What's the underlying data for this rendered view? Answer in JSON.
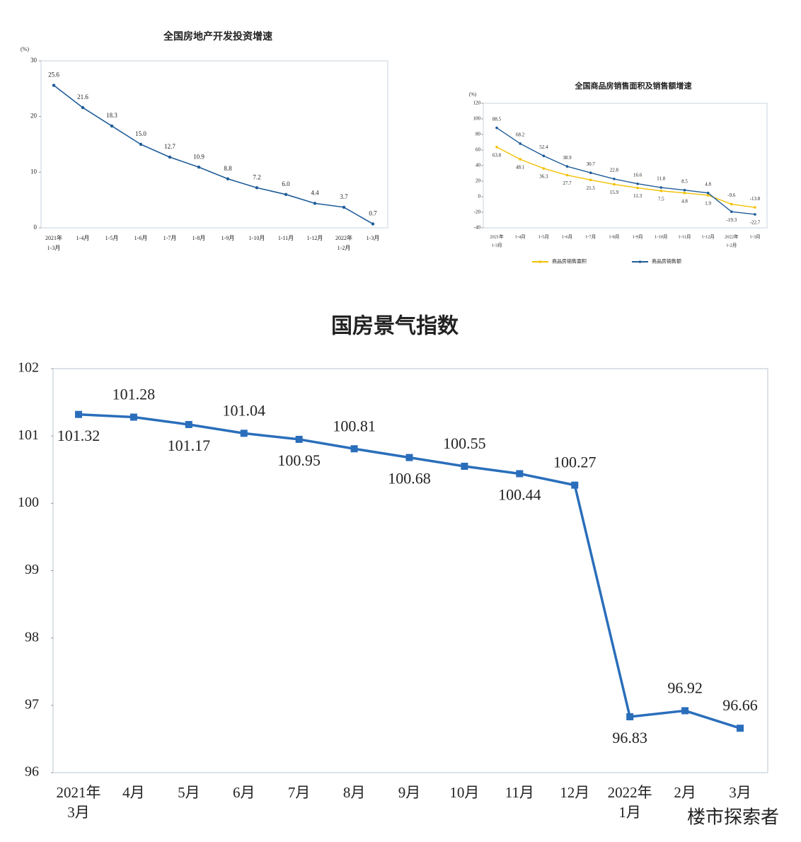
{
  "chart_data": [
    {
      "type": "line",
      "title": "全国房地产开发投资增速",
      "y_unit": "(%)",
      "categories": [
        [
          "2021年",
          "1-3月"
        ],
        [
          "1-4月"
        ],
        [
          "1-5月"
        ],
        [
          "1-6月"
        ],
        [
          "1-7月"
        ],
        [
          "1-8月"
        ],
        [
          "1-9月"
        ],
        [
          "1-10月"
        ],
        [
          "1-11月"
        ],
        [
          "1-12月"
        ],
        [
          "2022年",
          "1-2月"
        ],
        [
          "1-3月"
        ]
      ],
      "values": [
        25.6,
        21.6,
        18.3,
        15.0,
        12.7,
        10.9,
        8.8,
        7.2,
        6.0,
        4.4,
        3.7,
        0.7
      ],
      "value_labels": [
        "25.6",
        "21.6",
        "18.3",
        "15.0",
        "12.7",
        "10.9",
        "8.8",
        "7.2",
        "6.0",
        "4.4",
        "3.7",
        "0.7"
      ],
      "color": "#1f5c99",
      "ylim": [
        0,
        30
      ],
      "yticks": [
        0,
        10,
        20,
        30
      ]
    },
    {
      "type": "line",
      "title": "全国商品房销售面积及销售额增速",
      "y_unit": "(%)",
      "categories": [
        [
          "2021年",
          "1-3月"
        ],
        [
          "1-4月"
        ],
        [
          "1-5月"
        ],
        [
          "1-6月"
        ],
        [
          "1-7月"
        ],
        [
          "1-8月"
        ],
        [
          "1-9月"
        ],
        [
          "1-10月"
        ],
        [
          "1-11月"
        ],
        [
          "1-12月"
        ],
        [
          "2022年",
          "1-2月"
        ],
        [
          "1-3月"
        ]
      ],
      "series": [
        {
          "name": "商品房销售面积",
          "color": "#f2c100",
          "values": [
            63.8,
            48.1,
            36.3,
            27.7,
            21.5,
            15.9,
            11.3,
            7.5,
            4.8,
            1.9,
            -9.6,
            -13.8
          ]
        },
        {
          "name": "商品房销售额",
          "color": "#1f5c99",
          "values": [
            88.5,
            68.2,
            52.4,
            38.9,
            30.7,
            22.8,
            16.6,
            11.8,
            8.5,
            4.8,
            -19.3,
            -22.7
          ]
        }
      ],
      "ylim": [
        -40,
        120
      ],
      "yticks": [
        -40,
        -20,
        0,
        20,
        40,
        60,
        80,
        100,
        120
      ]
    },
    {
      "type": "line",
      "title": "国房景气指数",
      "categories": [
        [
          "2021年",
          "3月"
        ],
        [
          "4月"
        ],
        [
          "5月"
        ],
        [
          "6月"
        ],
        [
          "7月"
        ],
        [
          "8月"
        ],
        [
          "9月"
        ],
        [
          "10月"
        ],
        [
          "11月"
        ],
        [
          "12月"
        ],
        [
          "2022年",
          "1月"
        ],
        [
          "2月"
        ],
        [
          "3月"
        ]
      ],
      "values": [
        101.32,
        101.28,
        101.17,
        101.04,
        100.95,
        100.81,
        100.68,
        100.55,
        100.44,
        100.27,
        96.83,
        96.92,
        96.66
      ],
      "color": "#2a6ebb",
      "ylim": [
        96,
        102
      ],
      "yticks": [
        96,
        97,
        98,
        99,
        100,
        101,
        102
      ]
    }
  ],
  "watermark": "楼市探索者"
}
